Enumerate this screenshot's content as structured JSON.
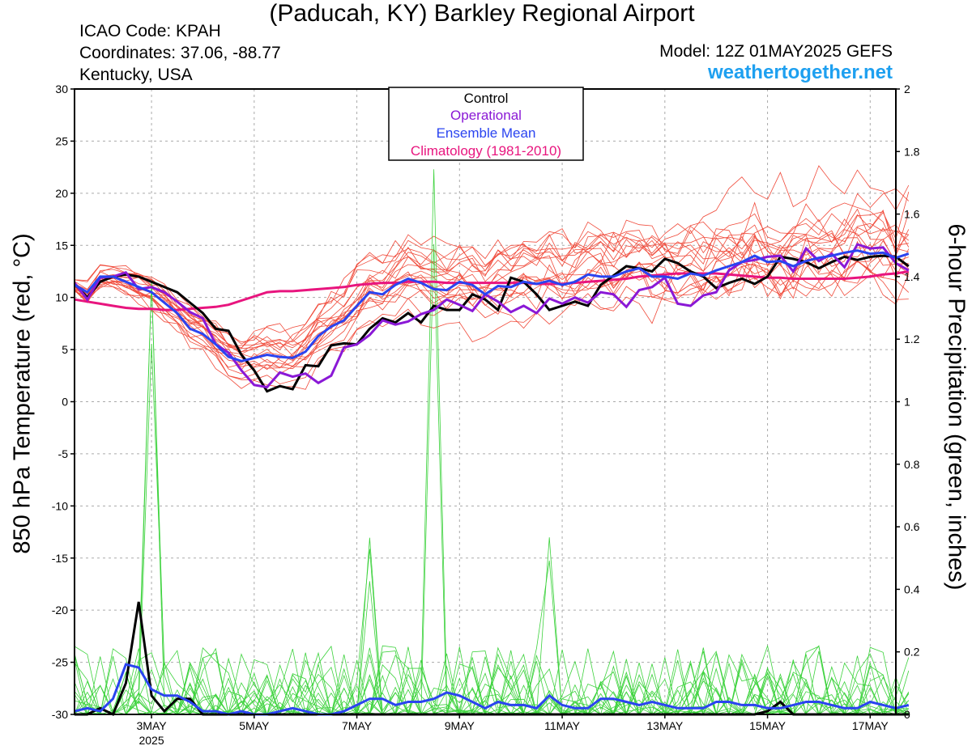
{
  "header": {
    "title": "(Paducah, KY) Barkley Regional Airport",
    "icao": "ICAO Code: KPAH",
    "coordinates": "Coordinates: 37.06, -88.77",
    "region": "Kentucky, USA",
    "model": "Model: 12Z 01MAY2025 GEFS",
    "site": "weathertogether.net"
  },
  "colors": {
    "members_temp": "#f04a3a",
    "members_precip": "#3cd23c",
    "control": "#000000",
    "operational": "#8a18d6",
    "ensemble_mean": "#2a44f0",
    "climatology": "#e8157e"
  },
  "chart_data": {
    "type": "line",
    "title": "(Paducah, KY) Barkley Regional Airport",
    "ylabel": "850 hPa Temperature (red, °C)",
    "y2label": "6-hour Precipitation (green, inches)",
    "ylim": [
      -30,
      30
    ],
    "y2lim": [
      0,
      2
    ],
    "yticks": [
      30,
      25,
      20,
      15,
      10,
      5,
      0,
      -5,
      -10,
      -15,
      -20,
      -25,
      -30
    ],
    "y2ticks": [
      2,
      1.8,
      1.6,
      1.4,
      1.2,
      1,
      0.8,
      0.6,
      0.4,
      0.2,
      0
    ],
    "xlim": [
      1.5,
      17.5
    ],
    "xticks": [
      {
        "day": 3,
        "label": "3MAY",
        "sub": "2025"
      },
      {
        "day": 5,
        "label": "5MAY"
      },
      {
        "day": 7,
        "label": "7MAY"
      },
      {
        "day": 9,
        "label": "9MAY"
      },
      {
        "day": 11,
        "label": "11MAY"
      },
      {
        "day": 13,
        "label": "13MAY"
      },
      {
        "day": 15,
        "label": "15MAY"
      },
      {
        "day": 17,
        "label": "17MAY"
      }
    ],
    "grid": true,
    "legend": {
      "placement": "top-center",
      "entries": [
        "Control",
        "Operational",
        "Ensemble Mean",
        "Climatology (1981-2010)"
      ]
    },
    "x_start_day": 1.5,
    "x_step_days": 0.25,
    "series": [
      {
        "name": "Control",
        "axis": "temp",
        "values": [
          11.3,
          10.0,
          11.5,
          12.0,
          12.2,
          12.0,
          11.5,
          11.0,
          10.5,
          9.5,
          8.5,
          7.0,
          6.8,
          4.5,
          3.0,
          1.0,
          1.5,
          1.2,
          3.5,
          3.4,
          5.4,
          5.6,
          5.5,
          7.0,
          8.0,
          7.6,
          8.5,
          7.6,
          9.2,
          8.8,
          8.8,
          10.3,
          9.8,
          8.8,
          11.9,
          11.5,
          10.3,
          8.8,
          9.2,
          9.6,
          9.2,
          11.2,
          12.1,
          13.0,
          12.8,
          12.5,
          13.7,
          13.3,
          12.5,
          12.0,
          10.9,
          11.4,
          11.8,
          11.3,
          12.0,
          13.9,
          13.7,
          13.4,
          12.8,
          13.4,
          13.9,
          13.6,
          13.9,
          14.0,
          13.9,
          13.0
        ]
      },
      {
        "name": "Operational",
        "axis": "temp",
        "values": [
          11.4,
          9.8,
          11.9,
          12.0,
          12.4,
          10.8,
          11.0,
          10.5,
          9.6,
          8.6,
          8.0,
          5.5,
          4.7,
          3.0,
          1.6,
          1.4,
          2.8,
          2.4,
          2.7,
          1.8,
          2.5,
          5.2,
          5.5,
          6.4,
          7.8,
          7.4,
          7.7,
          8.4,
          8.8,
          9.8,
          9.3,
          8.7,
          10.3,
          9.6,
          8.6,
          9.2,
          8.5,
          9.9,
          9.4,
          10.0,
          9.5,
          10.5,
          10.3,
          9.1,
          10.7,
          11.0,
          11.9,
          9.4,
          9.2,
          10.2,
          10.5,
          12.6,
          13.4,
          13.6,
          13.9,
          14.0,
          12.5,
          14.7,
          13.5,
          14.2,
          12.9,
          15.1,
          14.7,
          14.8,
          13.3,
          12.6
        ]
      },
      {
        "name": "Ensemble Mean",
        "axis": "temp",
        "values": [
          11.2,
          10.5,
          12.0,
          12.0,
          11.5,
          11.0,
          10.5,
          9.5,
          8.5,
          7.0,
          6.5,
          5.5,
          4.3,
          3.9,
          4.2,
          4.5,
          4.3,
          4.2,
          4.8,
          6.3,
          7.2,
          7.8,
          9.2,
          10.5,
          10.3,
          11.2,
          11.8,
          11.4,
          10.8,
          10.7,
          11.5,
          11.2,
          10.3,
          11.1,
          11.0,
          11.5,
          11.3,
          11.6,
          11.2,
          11.5,
          12.2,
          12.0,
          12.0,
          12.5,
          12.8,
          12.0,
          12.0,
          11.8,
          12.3,
          12.1,
          12.6,
          13.0,
          13.4,
          14.0,
          13.4,
          13.5,
          13.0,
          13.5,
          13.8,
          14.0,
          14.3,
          14.5,
          14.2,
          14.3,
          13.8,
          14.2
        ]
      },
      {
        "name": "Climatology (1981-2010)",
        "axis": "temp",
        "values": [
          9.8,
          9.6,
          9.4,
          9.2,
          9.0,
          8.9,
          8.9,
          8.8,
          8.8,
          8.9,
          9.0,
          9.1,
          9.3,
          9.7,
          10.1,
          10.5,
          10.6,
          10.6,
          10.7,
          10.8,
          10.9,
          11.0,
          11.2,
          11.3,
          11.4,
          11.4,
          11.5,
          11.5,
          11.5,
          11.4,
          11.4,
          11.4,
          11.4,
          11.4,
          11.4,
          11.4,
          11.3,
          11.3,
          11.3,
          11.4,
          11.5,
          11.6,
          11.7,
          11.8,
          12.0,
          12.1,
          12.2,
          12.3,
          12.3,
          12.3,
          12.3,
          12.2,
          12.1,
          12.0,
          11.9,
          11.9,
          11.8,
          11.8,
          11.8,
          11.8,
          11.8,
          11.9,
          12.0,
          12.2,
          12.3,
          12.5
        ]
      },
      {
        "name": "Control",
        "axis": "precip",
        "values": [
          0.0,
          0.0,
          0.02,
          0.0,
          0.1,
          0.36,
          0.06,
          0.01,
          0.05,
          0.05,
          0.0,
          0.0,
          0.0,
          0.0,
          0.0,
          0.0,
          0.0,
          0.0,
          0.0,
          0.0,
          0.0,
          0.0,
          0.0,
          0.0,
          0.0,
          0.0,
          0.0,
          0.0,
          0.0,
          0.0,
          0.0,
          0.0,
          0.0,
          0.0,
          0.0,
          0.0,
          0.0,
          0.0,
          0.0,
          0.0,
          0.0,
          0.0,
          0.0,
          0.0,
          0.0,
          0.0,
          0.0,
          0.0,
          0.0,
          0.0,
          0.0,
          0.0,
          0.0,
          0.0,
          0.01,
          0.04,
          0.0,
          0.0,
          0.0,
          0.0,
          0.0,
          0.0,
          0.0,
          0.0,
          0.0,
          0.0
        ]
      },
      {
        "name": "Ensemble Mean",
        "axis": "precip",
        "values": [
          0.01,
          0.02,
          0.01,
          0.05,
          0.16,
          0.15,
          0.08,
          0.06,
          0.06,
          0.04,
          0.01,
          0.01,
          0.0,
          0.01,
          0.0,
          0.0,
          0.01,
          0.02,
          0.01,
          0.0,
          0.0,
          0.01,
          0.03,
          0.05,
          0.05,
          0.03,
          0.04,
          0.04,
          0.05,
          0.07,
          0.06,
          0.04,
          0.02,
          0.04,
          0.03,
          0.03,
          0.02,
          0.06,
          0.03,
          0.02,
          0.02,
          0.05,
          0.05,
          0.04,
          0.03,
          0.04,
          0.03,
          0.02,
          0.02,
          0.02,
          0.04,
          0.04,
          0.03,
          0.03,
          0.02,
          0.02,
          0.03,
          0.04,
          0.04,
          0.03,
          0.02,
          0.02,
          0.04,
          0.03,
          0.02,
          0.03
        ]
      }
    ]
  }
}
